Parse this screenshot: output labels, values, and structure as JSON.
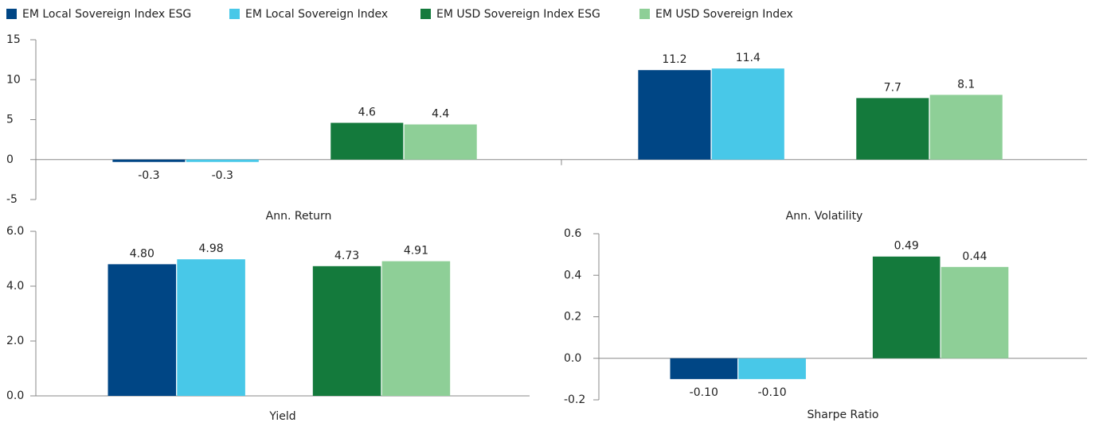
{
  "chart_data": [
    {
      "type": "bar",
      "categories": [
        "Ann. Return",
        "Ann. Volatility"
      ],
      "series": [
        {
          "name": "EM Local Sovereign Index ESG",
          "color": "#004685",
          "values": [
            -0.3,
            11.2
          ]
        },
        {
          "name": "EM Local Sovereign Index",
          "color": "#48c8e8",
          "values": [
            -0.3,
            11.4
          ]
        },
        {
          "name": "EM USD Sovereign Index ESG",
          "color": "#147a3c",
          "values": [
            4.6,
            7.7
          ]
        },
        {
          "name": "EM USD Sovereign Index",
          "color": "#8ecf97",
          "values": [
            4.4,
            8.1
          ]
        }
      ],
      "ylim": [
        -5,
        15
      ],
      "yticks": [
        -5,
        0,
        5,
        10,
        15
      ]
    },
    {
      "type": "bar",
      "categories": [
        "Yield"
      ],
      "series": [
        {
          "color": "#004685",
          "values": [
            4.8
          ],
          "value_labels": [
            "4.80"
          ]
        },
        {
          "color": "#48c8e8",
          "values": [
            4.98
          ],
          "value_labels": [
            "4.98"
          ]
        },
        {
          "color": "#147a3c",
          "values": [
            4.73
          ],
          "value_labels": [
            "4.73"
          ]
        },
        {
          "color": "#8ecf97",
          "values": [
            4.91
          ],
          "value_labels": [
            "4.91"
          ]
        }
      ],
      "ylim": [
        0,
        6
      ],
      "yticks": [
        {
          "value": 0,
          "label": "0.0"
        },
        {
          "value": 2,
          "label": "2.0"
        },
        {
          "value": 4,
          "label": "4.0"
        },
        {
          "value": 6,
          "label": "6.0"
        }
      ]
    },
    {
      "type": "bar",
      "categories": [
        "Sharpe Ratio"
      ],
      "series": [
        {
          "color": "#004685",
          "values": [
            -0.1
          ],
          "value_labels": [
            "-0.10"
          ]
        },
        {
          "color": "#48c8e8",
          "values": [
            -0.1
          ],
          "value_labels": [
            "-0.10"
          ]
        },
        {
          "color": "#147a3c",
          "values": [
            0.49
          ],
          "value_labels": [
            "0.49"
          ]
        },
        {
          "color": "#8ecf97",
          "values": [
            0.44
          ],
          "value_labels": [
            "0.44"
          ]
        }
      ],
      "ylim": [
        -0.2,
        0.6
      ],
      "yticks": [
        -0.2,
        {
          "value": 0,
          "label": "0.0"
        },
        0.2,
        0.4,
        0.6
      ]
    }
  ]
}
